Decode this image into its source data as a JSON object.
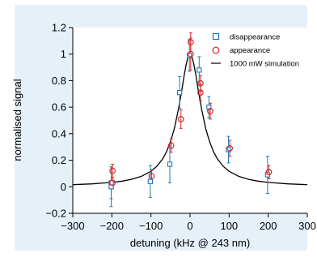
{
  "chart_data": {
    "type": "scatter",
    "xlabel": "detuning (kHz @ 243 nm)",
    "ylabel": "normalised signal",
    "xlim": [
      -300,
      300
    ],
    "ylim": [
      -0.2,
      1.2
    ],
    "xticks": [
      -300,
      -200,
      -100,
      0,
      100,
      200,
      300
    ],
    "xtick_labels": [
      "−300",
      "−200",
      "−100",
      "0",
      "100",
      "200",
      "300"
    ],
    "yticks": [
      -0.2,
      0,
      0.2,
      0.4,
      0.6,
      0.8,
      1,
      1.2
    ],
    "ytick_labels": [
      "−0.2",
      "0",
      "0.2",
      "0.4",
      "0.6",
      "0.8",
      "1",
      "1.2"
    ],
    "grid": false,
    "legend_position": "top-right",
    "plot_background": "#e6f0f9",
    "series": [
      {
        "name": "disappearance",
        "marker": "square",
        "color": "#1f78b4",
        "points": [
          {
            "x": -200,
            "y": 0.0,
            "err": 0.15
          },
          {
            "x": -200,
            "y": 0.03,
            "err": 0.12
          },
          {
            "x": -100,
            "y": 0.04,
            "err": 0.12
          },
          {
            "x": -50,
            "y": 0.17,
            "err": 0.14
          },
          {
            "x": -25,
            "y": 0.71,
            "err": 0.12
          },
          {
            "x": 0,
            "y": 0.99,
            "err": 0.12
          },
          {
            "x": 25,
            "y": 0.88,
            "err": 0.1
          },
          {
            "x": 50,
            "y": 0.6,
            "err": 0.08
          },
          {
            "x": 100,
            "y": 0.28,
            "err": 0.1
          },
          {
            "x": 200,
            "y": 0.09,
            "err": 0.14
          }
        ]
      },
      {
        "name": "appearance",
        "marker": "circle",
        "color": "#d7262b",
        "points": [
          {
            "x": -200,
            "y": 0.12,
            "err": 0.05
          },
          {
            "x": -200,
            "y": 0.03,
            "err": 0.04
          },
          {
            "x": -100,
            "y": 0.08,
            "err": 0.05
          },
          {
            "x": -50,
            "y": 0.31,
            "err": 0.05
          },
          {
            "x": -25,
            "y": 0.51,
            "err": 0.07
          },
          {
            "x": 0,
            "y": 1.0,
            "err": 0.12
          },
          {
            "x": 0,
            "y": 1.09,
            "err": 0.07
          },
          {
            "x": 25,
            "y": 0.78,
            "err": 0.06
          },
          {
            "x": 25,
            "y": 0.71,
            "err": 0.06
          },
          {
            "x": 50,
            "y": 0.57,
            "err": 0.06
          },
          {
            "x": 100,
            "y": 0.29,
            "err": 0.06
          },
          {
            "x": 200,
            "y": 0.11,
            "err": 0.05
          }
        ]
      },
      {
        "name": "1000 mW simulation",
        "type": "line",
        "color": "#000000",
        "x": [
          -300,
          -250,
          -200,
          -175,
          -150,
          -125,
          -100,
          -85,
          -70,
          -60,
          -50,
          -40,
          -30,
          -22,
          -15,
          -10,
          -5,
          0,
          5,
          10,
          15,
          22,
          30,
          40,
          50,
          60,
          70,
          85,
          100,
          125,
          150,
          175,
          200,
          250,
          300
        ],
        "y": [
          0.016,
          0.022,
          0.033,
          0.042,
          0.056,
          0.078,
          0.117,
          0.154,
          0.21,
          0.265,
          0.34,
          0.44,
          0.58,
          0.71,
          0.84,
          0.92,
          0.98,
          1.0,
          0.98,
          0.92,
          0.84,
          0.71,
          0.58,
          0.44,
          0.34,
          0.265,
          0.21,
          0.154,
          0.117,
          0.078,
          0.056,
          0.042,
          0.033,
          0.022,
          0.016
        ]
      }
    ]
  }
}
